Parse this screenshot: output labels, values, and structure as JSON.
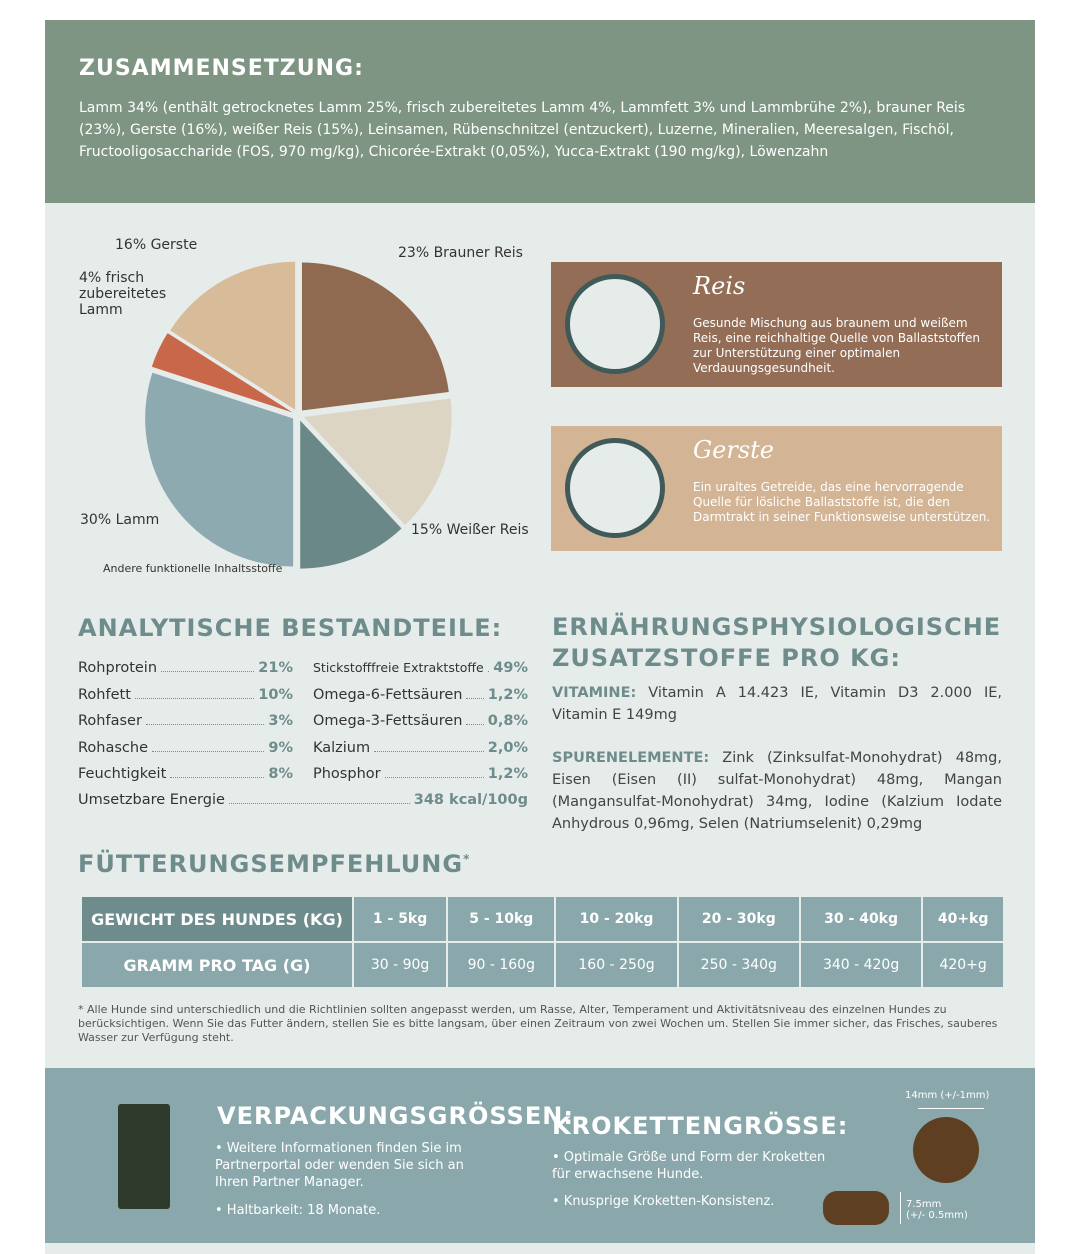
{
  "composition": {
    "title": "ZUSAMMENSETZUNG:",
    "text": "Lamm 34% (enthält getrocknetes Lamm 25%, frisch zubereitetes Lamm 4%, Lammfett 3% und Lammbrühe 2%), brauner Reis (23%), Gerste (16%), weißer Reis (15%), Leinsamen, Rübenschnitzel (entzuckert), Luzerne, Mineralien, Meeresalgen, Fischöl, Fructooligosaccharide (FOS, 970 mg/kg), Chicorée-Extrakt (0,05%), Yucca-Extrakt (190 mg/kg), Löwenzahn"
  },
  "chart_data": {
    "type": "pie",
    "slices": [
      {
        "label": "23% Brauner Reis",
        "value": 23,
        "color": "#8f6a50"
      },
      {
        "label": "15% Weißer Reis",
        "value": 15,
        "color": "#ddd5c4"
      },
      {
        "label": "Andere funktionelle Inhaltsstoffe",
        "value": 12,
        "color": "#6b8888"
      },
      {
        "label": "30% Lamm",
        "value": 30,
        "color": "#8daab0"
      },
      {
        "label": "4% frisch zubereitetes Lamm",
        "value": 4,
        "color": "#c8674a"
      },
      {
        "label": "16% Gerste",
        "value": 16,
        "color": "#d8bc9a"
      }
    ]
  },
  "cards": [
    {
      "title": "Reis",
      "text": "Gesunde Mischung aus braunem und weißem Reis, eine reichhaltige Quelle von Ballaststoffen zur Unterstützung einer optimalen Verdauungsgesundheit.",
      "color": "#936d55"
    },
    {
      "title": "Gerste",
      "text": "Ein uraltes Getreide, das eine hervorragende Quelle für lösliche Ballaststoffe ist, die den Darmtrakt in seiner Funktionsweise unterstützen.",
      "color": "#d3b495"
    }
  ],
  "analytic": {
    "title": "ANALYTISCHE BESTANDTEILE:",
    "left": [
      {
        "k": "Rohprotein",
        "v": "21%"
      },
      {
        "k": "Rohfett",
        "v": "10%"
      },
      {
        "k": "Rohfaser",
        "v": "3%"
      },
      {
        "k": "Rohasche",
        "v": "9%"
      },
      {
        "k": "Feuchtigkeit",
        "v": "8%"
      }
    ],
    "right": [
      {
        "k": "Stickstofffreie Extraktstoffe",
        "v": "49%"
      },
      {
        "k": "Omega-6-Fettsäuren",
        "v": "1,2%"
      },
      {
        "k": "Omega-3-Fettsäuren",
        "v": "0,8%"
      },
      {
        "k": "Kalzium",
        "v": "2,0%"
      },
      {
        "k": "Phosphor",
        "v": "1,2%"
      }
    ],
    "energy": {
      "k": "Umsetzbare Energie",
      "v": "348 kcal/100g"
    }
  },
  "additives": {
    "title1": "ERNÄHRUNGSPHYSIOLOGISCHE",
    "title2": "ZUSATZSTOFFE PRO KG:",
    "vit_label": "VITAMINE:",
    "vit": " Vitamin A 14.423 IE, Vitamin D3 2.000 IE, Vitamin E 149mg",
    "trace_label": "SPURENELEMENTE:",
    "trace": " Zink (Zinksulfat-Monohydrat) 48mg, Eisen (Eisen (II) sulfat-Monohydrat) 48mg, Mangan (Mangansulfat-Monohydrat) 34mg, Iodine (Kalzium Iodate Anhydrous 0,96mg, Selen (Natriumselenit) 0,29mg"
  },
  "feeding": {
    "title": "FÜTTERUNGSEMPFEHLUNG",
    "star": "*",
    "row1": [
      "GEWICHT DES HUNDES (KG)",
      "1 - 5kg",
      "5 - 10kg",
      "10 - 20kg",
      "20 - 30kg",
      "30 - 40kg",
      "40+kg"
    ],
    "row2": [
      "GRAMM PRO TAG (G)",
      "30 - 90g",
      "90 - 160g",
      "160 - 250g",
      "250 - 340g",
      "340 - 420g",
      "420+g"
    ],
    "note": "* Alle Hunde sind unterschiedlich und die Richtlinien sollten angepasst werden, um Rasse, Alter, Temperament und Aktivitätsniveau des einzelnen Hundes zu berücksichtigen. Wenn Sie das Futter ändern, stellen Sie es bitte langsam, über einen Zeitraum von zwei Wochen um. Stellen Sie immer sicher, das Frisches, sauberes Wasser zur Verfügung steht."
  },
  "packaging": {
    "title": "VERPACKUNGSGRÖSSEN:",
    "b1": "• Weitere Informationen finden Sie im Partnerportal oder wenden Sie sich an Ihren Partner Manager.",
    "b2": "• Haltbarkeit: 18 Monate."
  },
  "kibble": {
    "title": "KROKETTENGRÖSSE:",
    "b1": "• Optimale Größe und Form der Kroketten für erwachsene Hunde.",
    "b2": "• Knusprige Kroketten-Konsistenz.",
    "diameter": "14mm (+/-1mm)",
    "height": "7.5mm",
    "height_tol": "(+/- 0.5mm)"
  }
}
